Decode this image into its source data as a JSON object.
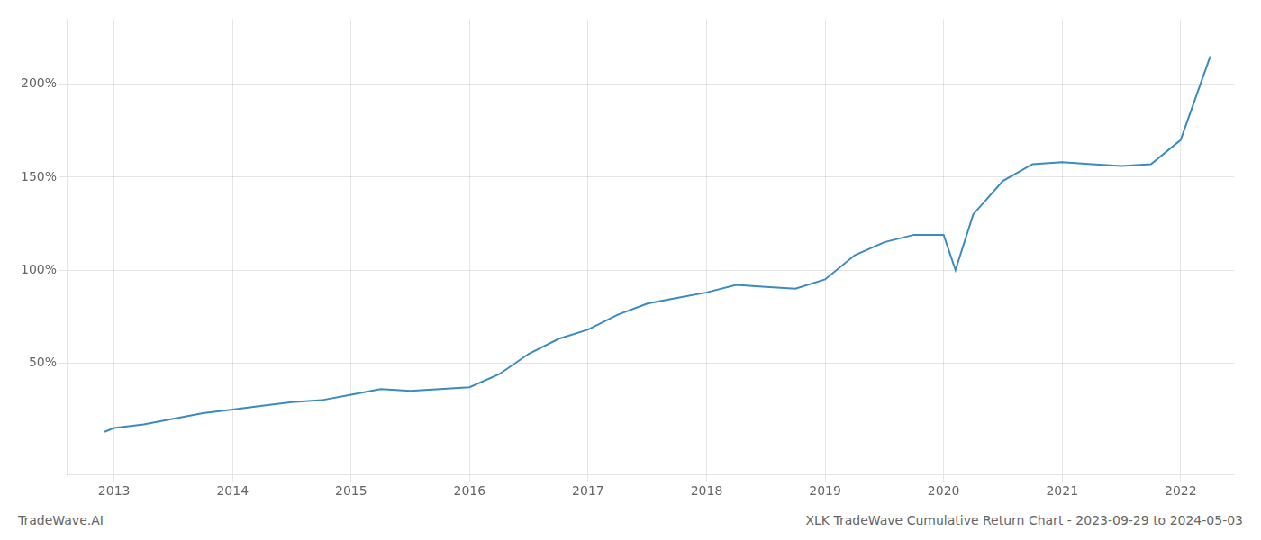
{
  "chart_data": {
    "type": "line",
    "title": "XLK TradeWave Cumulative Return Chart - 2023-09-29 to 2024-05-03",
    "annotations": [
      "TradeWave.AI"
    ],
    "color": "#3a8bbf",
    "x": [
      2012.92,
      2013.0,
      2013.25,
      2013.5,
      2013.75,
      2014.0,
      2014.25,
      2014.5,
      2014.75,
      2015.0,
      2015.25,
      2015.5,
      2015.75,
      2016.0,
      2016.25,
      2016.5,
      2016.75,
      2017.0,
      2017.25,
      2017.5,
      2017.75,
      2018.0,
      2018.25,
      2018.5,
      2018.75,
      2019.0,
      2019.25,
      2019.5,
      2019.75,
      2020.0,
      2020.1,
      2020.25,
      2020.5,
      2020.75,
      2021.0,
      2021.25,
      2021.5,
      2021.75,
      2022.0,
      2022.25
    ],
    "values": [
      13,
      15,
      17,
      20,
      23,
      25,
      27,
      29,
      30,
      33,
      36,
      35,
      36,
      37,
      44,
      55,
      63,
      68,
      76,
      82,
      85,
      88,
      92,
      91,
      90,
      95,
      108,
      115,
      119,
      119,
      100,
      130,
      148,
      157,
      158,
      157,
      156,
      157,
      170,
      215
    ],
    "xlim": [
      2012.6,
      2022.45
    ],
    "xticks": [
      2013,
      2014,
      2015,
      2016,
      2017,
      2018,
      2019,
      2020,
      2021,
      2022
    ],
    "ylim": [
      -10,
      235
    ],
    "yticks": [
      {
        "value": 50,
        "label": "50%"
      },
      {
        "value": 100,
        "label": "100%"
      },
      {
        "value": 150,
        "label": "150%"
      },
      {
        "value": 200,
        "label": "200%"
      }
    ],
    "grid": true
  }
}
